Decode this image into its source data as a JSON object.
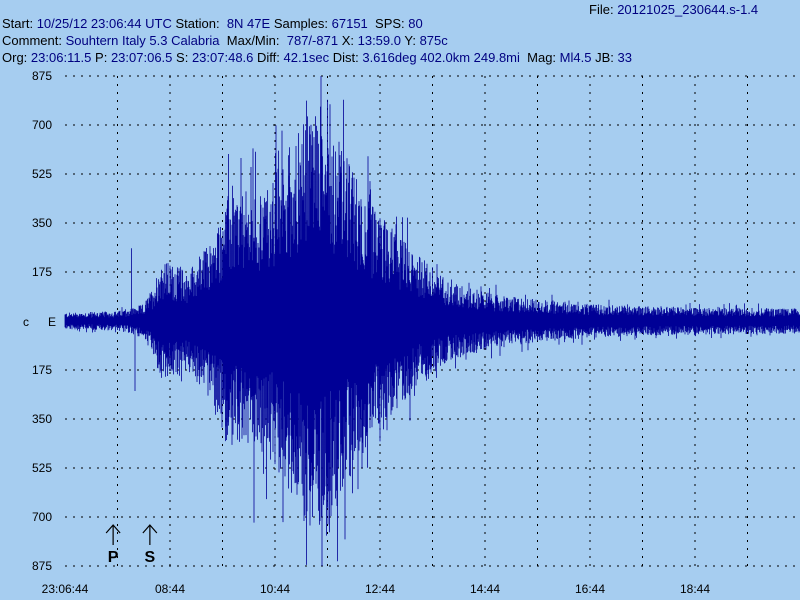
{
  "header": {
    "file_label": "File:",
    "file_value": "20121025_230644.s-1.4",
    "start_label": "Start:",
    "start_value": "10/25/12 23:06:44 UTC",
    "station_label": "Station:",
    "station_value": "8N 47E",
    "samples_label": "Samples:",
    "samples_value": "67151",
    "sps_label": "SPS:",
    "sps_value": "80",
    "comment_label": "Comment:",
    "comment_value": "Souhtern Italy 5.3 Calabria",
    "maxmin_label": "Max/Min:",
    "maxmin_value": "787/-871",
    "x_label": "X:",
    "x_value": "13:59.0",
    "y_label": "Y:",
    "y_value": "875c",
    "org_label": "Org:",
    "org_value": "23:06:11.5",
    "p_label": "P:",
    "p_value": "23:07:06.5",
    "s_label": "S:",
    "s_value": "23:07:48.6",
    "diff_label": "Diff:",
    "diff_value": "42.1sec",
    "dist_label": "Dist:",
    "dist_value": "3.616deg 402.0km 249.8mi",
    "mag_label": "Mag:",
    "mag_value": "Ml4.5",
    "jb_label": "JB:",
    "jb_value": "33"
  },
  "center_labels": {
    "c": "c",
    "e": "E"
  },
  "markers": [
    {
      "label": "P",
      "time_s": 55
    },
    {
      "label": "S",
      "time_s": 97
    }
  ],
  "colors": {
    "background": "#a6cdf0",
    "trace": "#000096",
    "grid": "#000000",
    "value_text": "#000080"
  },
  "chart_data": {
    "type": "line",
    "title": "",
    "xlabel": "",
    "ylabel": "",
    "x_range_s": [
      0,
      840
    ],
    "x_ticks": [
      {
        "label": "23:06:44",
        "t": 0
      },
      {
        "label": "08:44",
        "t": 120
      },
      {
        "label": "10:44",
        "t": 240
      },
      {
        "label": "12:44",
        "t": 360
      },
      {
        "label": "14:44",
        "t": 480
      },
      {
        "label": "16:44",
        "t": 600
      },
      {
        "label": "18:44",
        "t": 720
      }
    ],
    "x_grid_step_s": 60,
    "ylim": [
      -875,
      875
    ],
    "y_ticks": [
      {
        "label": "875",
        "v": 875
      },
      {
        "label": "700",
        "v": 700
      },
      {
        "label": "525",
        "v": 525
      },
      {
        "label": "350",
        "v": 350
      },
      {
        "label": "175",
        "v": 175
      },
      {
        "label": "175",
        "v": -175
      },
      {
        "label": "350",
        "v": -350
      },
      {
        "label": "525",
        "v": -525
      },
      {
        "label": "700",
        "v": -700
      },
      {
        "label": "875",
        "v": -875
      }
    ],
    "grid": true,
    "series": [
      {
        "envelope": [
          {
            "t": 0,
            "amp": 30
          },
          {
            "t": 60,
            "amp": 35
          },
          {
            "t": 90,
            "amp": 60
          },
          {
            "t": 100,
            "amp": 120
          },
          {
            "t": 110,
            "amp": 220
          },
          {
            "t": 140,
            "amp": 180
          },
          {
            "t": 170,
            "amp": 300
          },
          {
            "t": 185,
            "amp": 450
          },
          {
            "t": 230,
            "amp": 480
          },
          {
            "t": 270,
            "amp": 700
          },
          {
            "t": 290,
            "amp": 800
          },
          {
            "t": 320,
            "amp": 600
          },
          {
            "t": 350,
            "amp": 420
          },
          {
            "t": 400,
            "amp": 250
          },
          {
            "t": 440,
            "amp": 140
          },
          {
            "t": 500,
            "amp": 90
          },
          {
            "t": 600,
            "amp": 60
          },
          {
            "t": 700,
            "amp": 50
          },
          {
            "t": 840,
            "amp": 45
          }
        ],
        "peaks": [
          {
            "t": 216,
            "v": -720
          },
          {
            "t": 248,
            "v": 680
          },
          {
            "t": 276,
            "v": 787
          },
          {
            "t": 276,
            "v": -871
          },
          {
            "t": 282,
            "v": -500
          },
          {
            "t": 300,
            "v": 790
          },
          {
            "t": 302,
            "v": -750
          },
          {
            "t": 313,
            "v": 640
          },
          {
            "t": 318,
            "v": 790
          },
          {
            "t": 320,
            "v": -780
          },
          {
            "t": 352,
            "v": 380
          },
          {
            "t": 360,
            "v": -430
          },
          {
            "t": 408,
            "v": 210
          },
          {
            "t": 76,
            "v": 260
          },
          {
            "t": 80,
            "v": -250
          }
        ]
      }
    ]
  }
}
